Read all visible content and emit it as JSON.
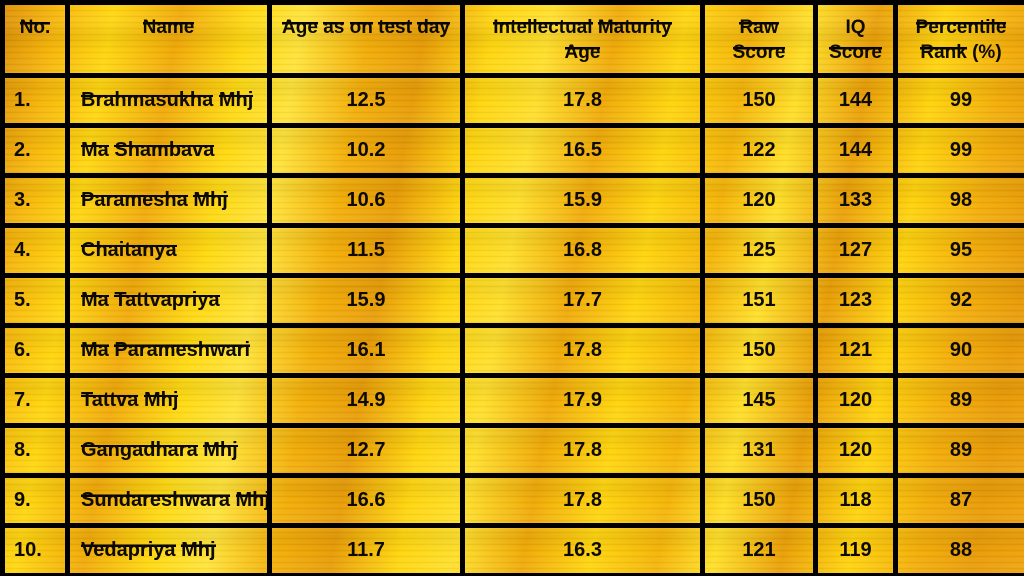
{
  "style": {
    "gold_bright": "#ffd60e",
    "gold_dark": "#e08f06",
    "grid_color": "#000000",
    "text_color": "#0d0a00"
  },
  "chart_data": {
    "type": "table",
    "columns": [
      "No.",
      "Name",
      "Age as on test day",
      "Intellectual Maturity\nAge",
      "Raw\nScore",
      "IQ\nScore",
      "Percentile\nRank (%)"
    ],
    "rows": [
      [
        "1.",
        "Brahmasukha Mhj",
        "12.5",
        "17.8",
        "150",
        "144",
        "99"
      ],
      [
        "2.",
        "Ma Shambava",
        "10.2",
        "16.5",
        "122",
        "144",
        "99"
      ],
      [
        "3.",
        "Paramesha Mhj",
        "10.6",
        "15.9",
        "120",
        "133",
        "98"
      ],
      [
        "4.",
        "Chaitanya",
        "11.5",
        "16.8",
        "125",
        "127",
        "95"
      ],
      [
        "5.",
        "Ma Tattvapriya",
        "15.9",
        "17.7",
        "151",
        "123",
        "92"
      ],
      [
        "6.",
        "Ma Parameshwari",
        "16.1",
        "17.8",
        "150",
        "121",
        "90"
      ],
      [
        "7.",
        "Tattva Mhj",
        "14.9",
        "17.9",
        "145",
        "120",
        "89"
      ],
      [
        "8.",
        "Gangadhara Mhj",
        "12.7",
        "17.8",
        "131",
        "120",
        "89"
      ],
      [
        "9.",
        "Sundareshwara Mhj",
        "16.6",
        "17.8",
        "150",
        "118",
        "87"
      ],
      [
        "10.",
        "Vedapriya Mhj",
        "11.7",
        "16.3",
        "121",
        "119",
        "88"
      ]
    ]
  }
}
